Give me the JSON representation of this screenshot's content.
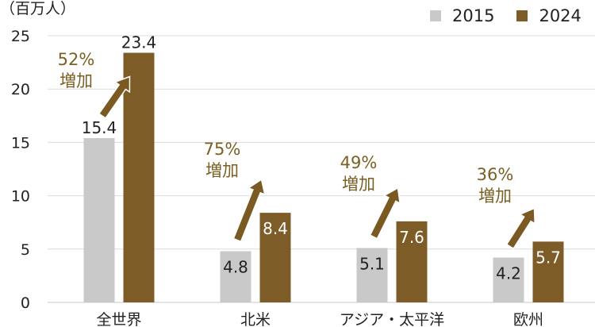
{
  "chart_data": {
    "type": "bar",
    "unit_label": "（百万人）",
    "categories": [
      "全世界",
      "北米",
      "アジア・太平洋",
      "欧州"
    ],
    "series": [
      {
        "name": "2015",
        "values": [
          15.4,
          4.8,
          5.1,
          4.2
        ],
        "color": "#c9c9c9"
      },
      {
        "name": "2024",
        "values": [
          23.4,
          8.4,
          7.6,
          5.7
        ],
        "color": "#7d5c27"
      }
    ],
    "value_labels": {
      "2015": [
        "15.4",
        "4.8",
        "5.1",
        "4.2"
      ],
      "2024": [
        "23.4",
        "8.4",
        "7.6",
        "5.7"
      ]
    },
    "annotations": [
      {
        "pct": "52%",
        "text": "増加"
      },
      {
        "pct": "75%",
        "text": "増加"
      },
      {
        "pct": "49%",
        "text": "増加"
      },
      {
        "pct": "36%",
        "text": "増加"
      }
    ],
    "annotation_color": "#7a6024",
    "y_ticks": [
      0,
      5,
      10,
      15,
      20,
      25
    ],
    "ylim": [
      0,
      25
    ],
    "grid": true,
    "legend_position": "top-right"
  }
}
